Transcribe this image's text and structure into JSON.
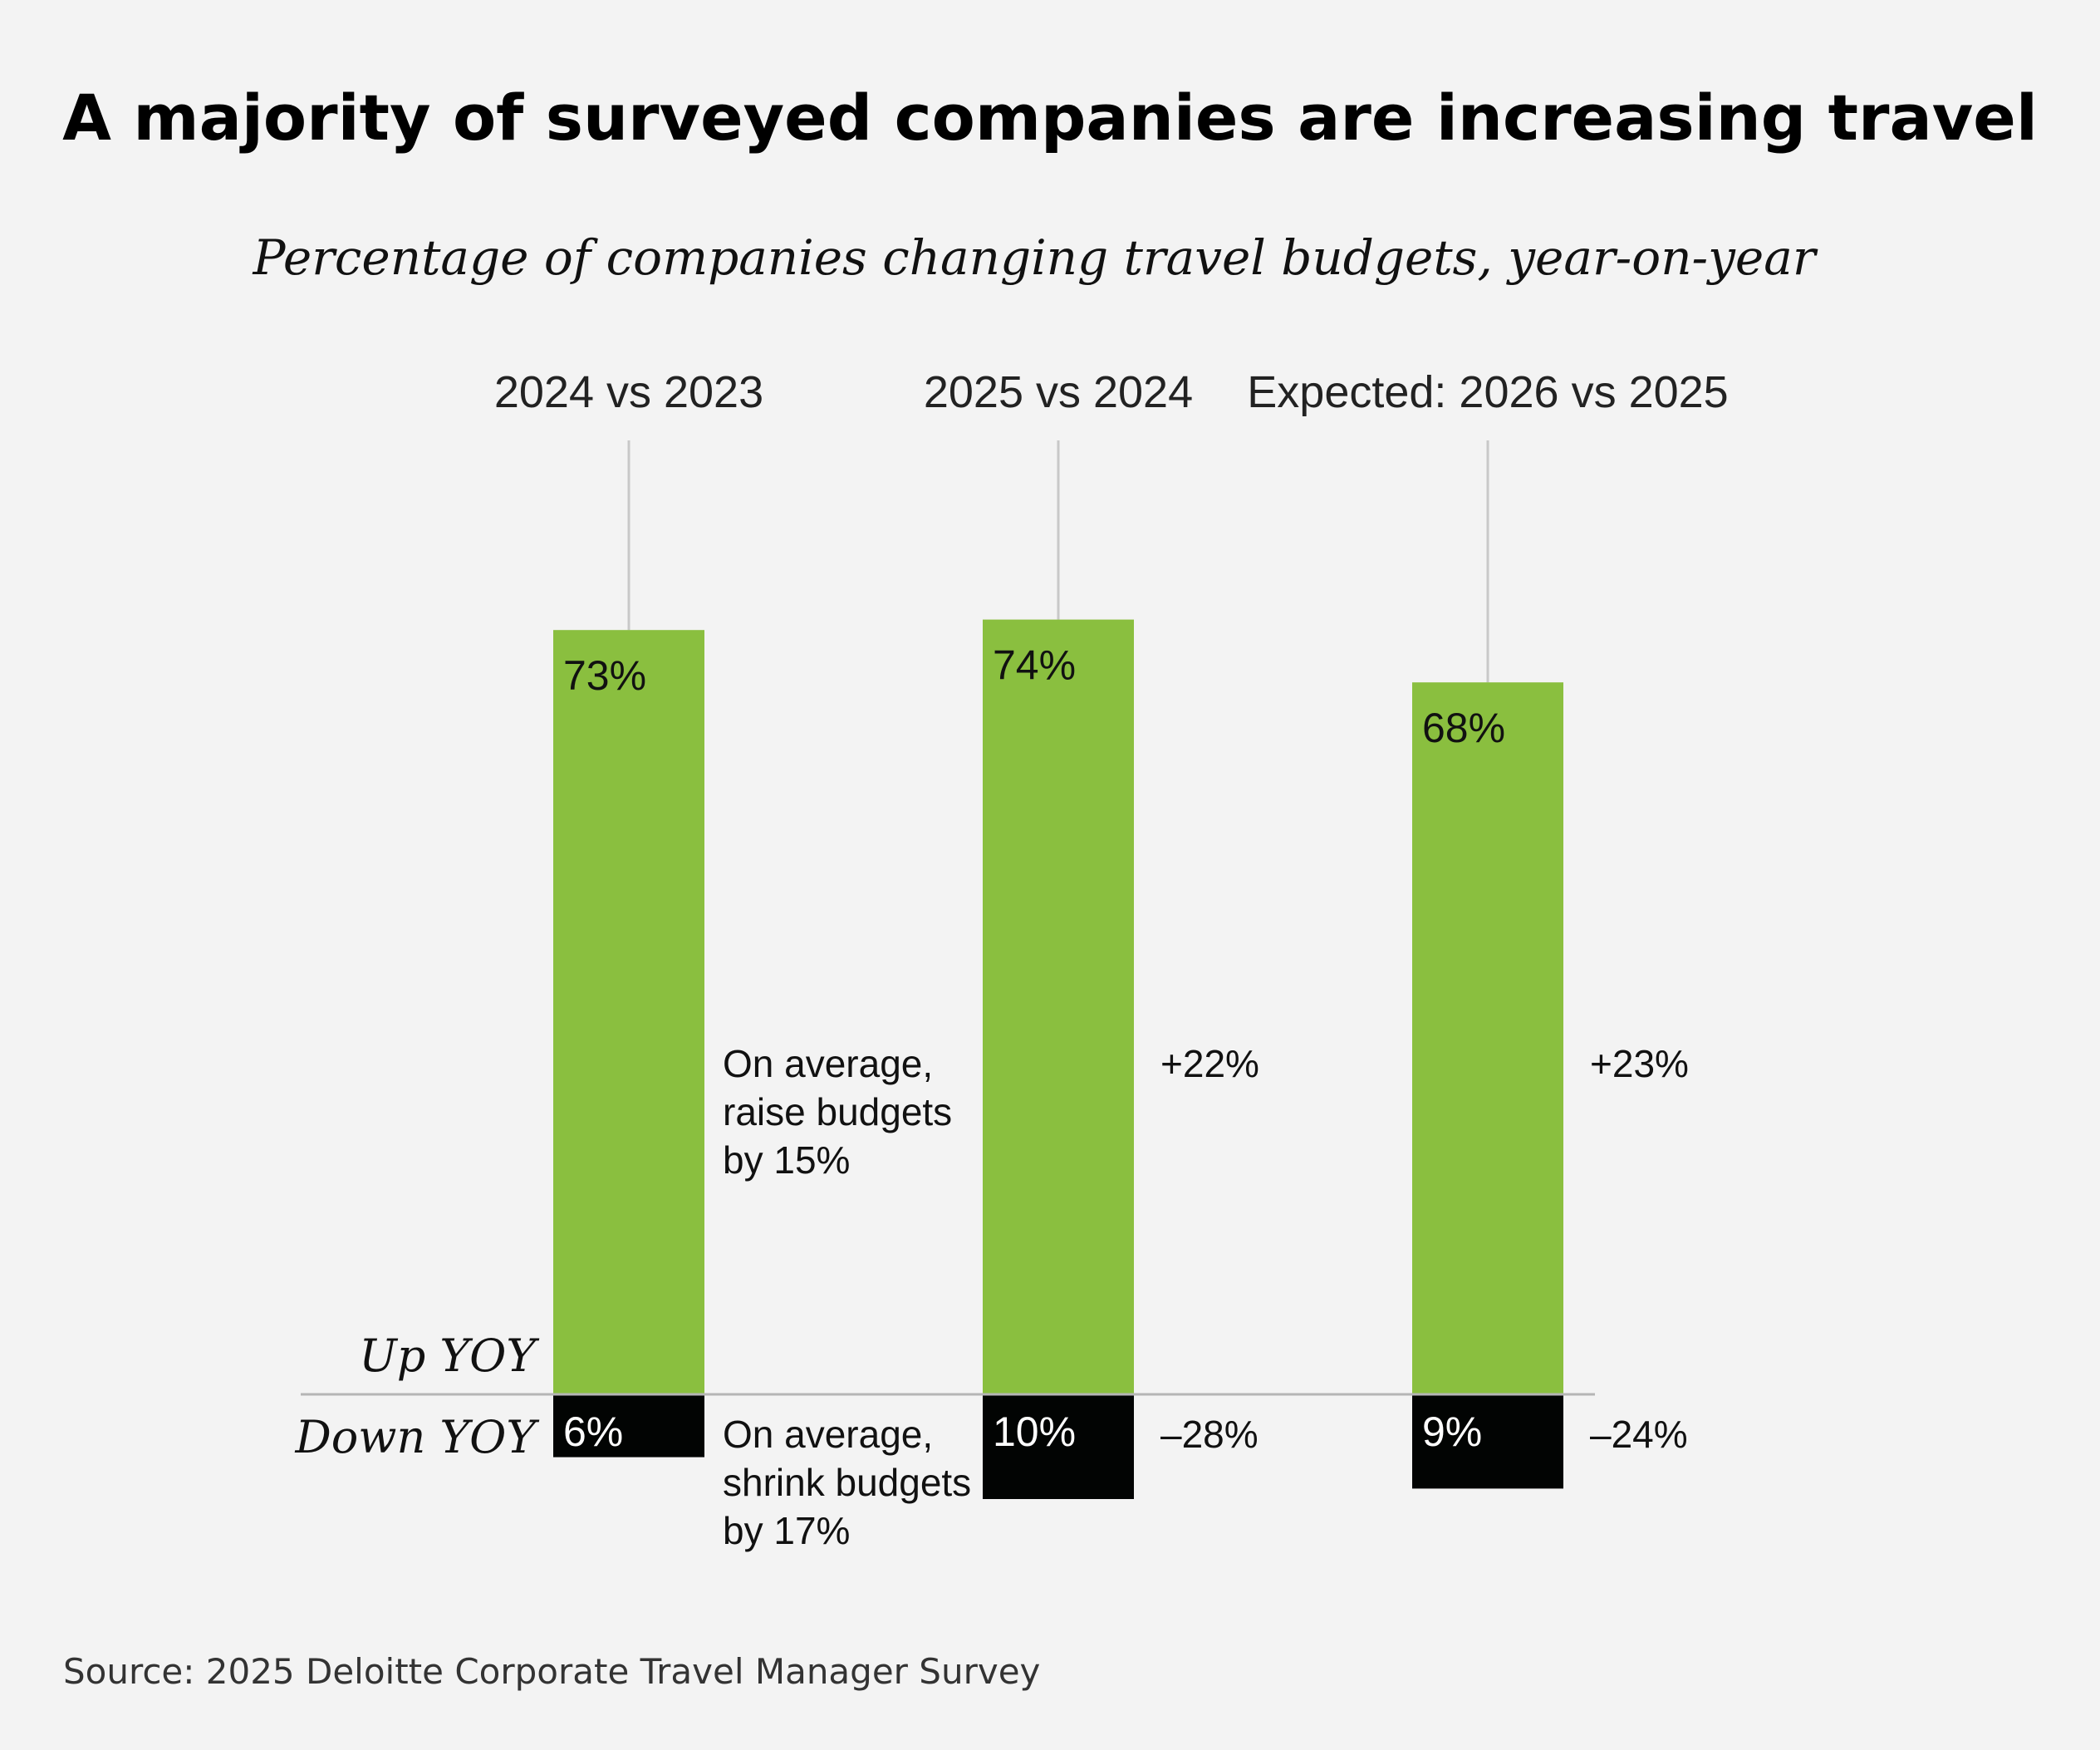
{
  "chart_data": {
    "type": "bar",
    "title": "A majority of surveyed companies are increasing travel",
    "subtitle": "Percentage of companies changing travel budgets, year-on-year",
    "categories": [
      "2024 vs 2023",
      "2025 vs 2024",
      "Expected: 2026 vs 2025"
    ],
    "series": [
      {
        "name": "Up YOY",
        "values": [
          73,
          74,
          68
        ],
        "labels": [
          "73%",
          "74%",
          "68%"
        ],
        "color": "#8abf3f"
      },
      {
        "name": "Down YOY",
        "values": [
          6,
          10,
          9
        ],
        "labels": [
          "6%",
          "10%",
          "9%"
        ],
        "color": "#020403"
      }
    ],
    "average_change": {
      "up": [
        "On average, raise budgets by 15%",
        "+22%",
        "+23%"
      ],
      "down": [
        "On average, shrink budgets by 17%",
        "–28%",
        "–24%"
      ]
    },
    "ylim": [
      -10,
      80
    ],
    "grid": false,
    "legend": "inline-left"
  },
  "source": "Source: 2025 Deloitte Corporate Travel Manager Survey"
}
